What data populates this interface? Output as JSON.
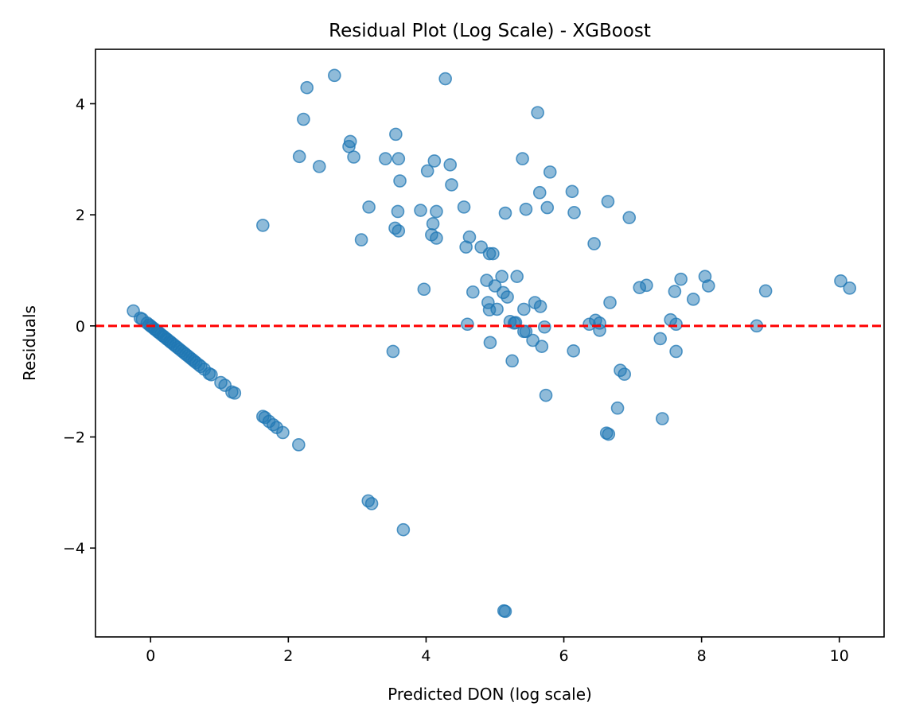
{
  "chart_data": {
    "type": "scatter",
    "title": "Residual Plot (Log Scale) - XGBoost",
    "xlabel": "Predicted DON (log scale)",
    "ylabel": "Residuals",
    "xlim": [
      -0.8,
      10.65
    ],
    "ylim": [
      -5.6,
      4.98
    ],
    "xticks": [
      0,
      2,
      4,
      6,
      8,
      10
    ],
    "yticks": [
      -4,
      -2,
      0,
      2,
      4
    ],
    "grid": false,
    "legend": "none",
    "point_color": "#1f77b4",
    "point_opacity": 0.5,
    "reference_line": {
      "y": 0,
      "style": "dashed",
      "color": "#ff0000"
    },
    "points": [
      [
        -0.25,
        0.27
      ],
      [
        -0.15,
        0.14
      ],
      [
        -0.12,
        0.12
      ],
      [
        -0.05,
        0.05
      ],
      [
        -0.02,
        0.02
      ],
      [
        0.0,
        0.0
      ],
      [
        0.02,
        -0.02
      ],
      [
        0.05,
        -0.05
      ],
      [
        0.07,
        -0.07
      ],
      [
        0.1,
        -0.1
      ],
      [
        0.12,
        -0.12
      ],
      [
        0.15,
        -0.15
      ],
      [
        0.18,
        -0.18
      ],
      [
        0.2,
        -0.2
      ],
      [
        0.23,
        -0.23
      ],
      [
        0.25,
        -0.25
      ],
      [
        0.28,
        -0.28
      ],
      [
        0.3,
        -0.3
      ],
      [
        0.33,
        -0.33
      ],
      [
        0.36,
        -0.36
      ],
      [
        0.39,
        -0.39
      ],
      [
        0.42,
        -0.42
      ],
      [
        0.45,
        -0.45
      ],
      [
        0.48,
        -0.48
      ],
      [
        0.51,
        -0.51
      ],
      [
        0.54,
        -0.54
      ],
      [
        0.57,
        -0.57
      ],
      [
        0.6,
        -0.6
      ],
      [
        0.63,
        -0.63
      ],
      [
        0.66,
        -0.66
      ],
      [
        0.7,
        -0.7
      ],
      [
        0.73,
        -0.73
      ],
      [
        0.78,
        -0.78
      ],
      [
        0.85,
        -0.86
      ],
      [
        0.88,
        -0.88
      ],
      [
        1.02,
        -1.02
      ],
      [
        1.08,
        -1.07
      ],
      [
        1.18,
        -1.19
      ],
      [
        1.22,
        -1.21
      ],
      [
        1.63,
        -1.63
      ],
      [
        1.66,
        -1.65
      ],
      [
        1.72,
        -1.72
      ],
      [
        1.78,
        -1.78
      ],
      [
        1.83,
        -1.83
      ],
      [
        1.92,
        -1.92
      ],
      [
        2.15,
        -2.14
      ],
      [
        3.16,
        -3.15
      ],
      [
        3.21,
        -3.2
      ],
      [
        3.67,
        -3.67
      ],
      [
        5.13,
        -5.13
      ],
      [
        5.15,
        -5.14
      ],
      [
        1.63,
        1.81
      ],
      [
        2.16,
        3.05
      ],
      [
        2.22,
        3.72
      ],
      [
        2.27,
        4.29
      ],
      [
        2.45,
        2.87
      ],
      [
        2.67,
        4.51
      ],
      [
        2.88,
        3.23
      ],
      [
        2.9,
        3.32
      ],
      [
        2.95,
        3.04
      ],
      [
        3.06,
        1.55
      ],
      [
        3.17,
        2.14
      ],
      [
        3.41,
        3.01
      ],
      [
        3.52,
        -0.46
      ],
      [
        3.55,
        1.76
      ],
      [
        3.56,
        3.45
      ],
      [
        3.59,
        2.06
      ],
      [
        3.6,
        3.01
      ],
      [
        3.6,
        1.71
      ],
      [
        3.62,
        2.61
      ],
      [
        3.92,
        2.08
      ],
      [
        3.97,
        0.66
      ],
      [
        4.02,
        2.79
      ],
      [
        4.08,
        1.64
      ],
      [
        4.1,
        1.84
      ],
      [
        4.12,
        2.97
      ],
      [
        4.15,
        1.58
      ],
      [
        4.15,
        2.06
      ],
      [
        4.28,
        4.45
      ],
      [
        4.35,
        2.9
      ],
      [
        4.37,
        2.54
      ],
      [
        4.55,
        2.14
      ],
      [
        4.58,
        1.42
      ],
      [
        4.6,
        0.03
      ],
      [
        4.63,
        1.6
      ],
      [
        4.68,
        0.61
      ],
      [
        4.8,
        1.42
      ],
      [
        4.88,
        0.82
      ],
      [
        4.9,
        0.42
      ],
      [
        4.92,
        1.3
      ],
      [
        4.92,
        0.29
      ],
      [
        4.93,
        -0.3
      ],
      [
        4.97,
        1.3
      ],
      [
        5.0,
        0.72
      ],
      [
        5.03,
        0.3
      ],
      [
        5.1,
        0.89
      ],
      [
        5.12,
        0.6
      ],
      [
        5.15,
        2.03
      ],
      [
        5.18,
        0.52
      ],
      [
        5.22,
        0.08
      ],
      [
        5.25,
        -0.63
      ],
      [
        5.28,
        0.05
      ],
      [
        5.3,
        0.06
      ],
      [
        5.32,
        0.89
      ],
      [
        5.4,
        3.01
      ],
      [
        5.42,
        -0.1
      ],
      [
        5.42,
        0.3
      ],
      [
        5.45,
        2.1
      ],
      [
        5.45,
        -0.1
      ],
      [
        5.55,
        -0.26
      ],
      [
        5.58,
        0.42
      ],
      [
        5.62,
        3.84
      ],
      [
        5.65,
        2.4
      ],
      [
        5.66,
        0.35
      ],
      [
        5.68,
        -0.37
      ],
      [
        5.72,
        -0.02
      ],
      [
        5.74,
        -1.25
      ],
      [
        5.76,
        2.13
      ],
      [
        5.8,
        2.77
      ],
      [
        6.12,
        2.42
      ],
      [
        6.14,
        -0.45
      ],
      [
        6.15,
        2.04
      ],
      [
        6.37,
        0.03
      ],
      [
        6.44,
        1.48
      ],
      [
        6.46,
        0.1
      ],
      [
        6.52,
        0.05
      ],
      [
        6.52,
        -0.08
      ],
      [
        6.62,
        -1.93
      ],
      [
        6.64,
        2.24
      ],
      [
        6.65,
        -1.95
      ],
      [
        6.67,
        0.42
      ],
      [
        6.78,
        -1.48
      ],
      [
        6.82,
        -0.8
      ],
      [
        6.88,
        -0.87
      ],
      [
        6.95,
        1.95
      ],
      [
        7.1,
        0.69
      ],
      [
        7.2,
        0.73
      ],
      [
        7.4,
        -0.23
      ],
      [
        7.43,
        -1.67
      ],
      [
        7.55,
        0.11
      ],
      [
        7.61,
        0.62
      ],
      [
        7.63,
        0.03
      ],
      [
        7.63,
        -0.46
      ],
      [
        7.7,
        0.84
      ],
      [
        7.88,
        0.48
      ],
      [
        8.05,
        0.89
      ],
      [
        8.1,
        0.72
      ],
      [
        8.8,
        0.0
      ],
      [
        8.93,
        0.63
      ],
      [
        10.02,
        0.81
      ],
      [
        10.15,
        0.68
      ]
    ]
  }
}
